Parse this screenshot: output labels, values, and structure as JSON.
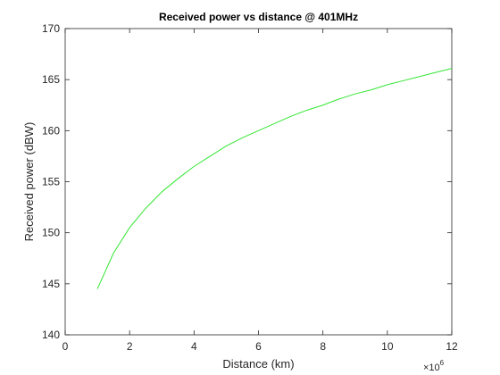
{
  "chart_data": {
    "type": "line",
    "title": "Received power vs distance @ 401MHz",
    "xlabel": "Distance (km)",
    "ylabel": "Received power (dBW)",
    "x_multiplier_base": "×10",
    "x_multiplier_exponent": "6",
    "xlim": [
      0,
      12
    ],
    "ylim": [
      140,
      170
    ],
    "x_ticks": [
      0,
      2,
      4,
      6,
      8,
      10,
      12
    ],
    "x_tick_labels": [
      "0",
      "2",
      "4",
      "6",
      "8",
      "10",
      "12"
    ],
    "y_ticks": [
      140,
      145,
      150,
      155,
      160,
      165,
      170
    ],
    "y_tick_labels": [
      "140",
      "145",
      "150",
      "155",
      "160",
      "165",
      "170"
    ],
    "grid": false,
    "line_color": "#33e633",
    "series": [
      {
        "x": [
          1,
          1.5,
          2,
          2.5,
          3,
          3.5,
          4,
          4.5,
          5,
          5.5,
          6,
          6.5,
          7,
          7.5,
          8,
          8.5,
          9,
          9.5,
          10,
          10.5,
          11,
          11.5,
          12
        ],
        "values": [
          144.5,
          148.0,
          150.5,
          152.4,
          154.0,
          155.3,
          156.5,
          157.5,
          158.5,
          159.3,
          160.0,
          160.7,
          161.4,
          162.0,
          162.5,
          163.1,
          163.6,
          164.0,
          164.5,
          164.9,
          165.3,
          165.7,
          166.1
        ]
      }
    ]
  }
}
